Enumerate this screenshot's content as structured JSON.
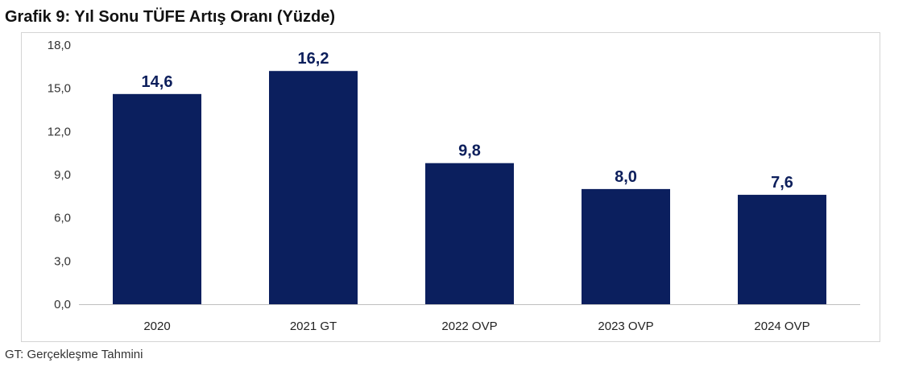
{
  "title": "Grafik 9: Yıl Sonu TÜFE Artış Oranı (Yüzde)",
  "footnote": "GT: Gerçekleşme Tahmini",
  "colors": {
    "bar": "#0b1f5e",
    "label": "#0d1f5c",
    "axis": "#bfbfbf"
  },
  "chart_data": {
    "type": "bar",
    "title": "Grafik 9: Yıl Sonu TÜFE Artış Oranı (Yüzde)",
    "categories": [
      "2020",
      "2021 GT",
      "2022 OVP",
      "2023 OVP",
      "2024 OVP"
    ],
    "values": [
      14.6,
      16.2,
      9.8,
      8.0,
      7.6
    ],
    "value_labels": [
      "14,6",
      "16,2",
      "9,8",
      "8,0",
      "7,6"
    ],
    "yticks": [
      "0,0",
      "3,0",
      "6,0",
      "9,0",
      "12,0",
      "15,0",
      "18,0"
    ],
    "ylim": [
      0,
      18
    ],
    "xlabel": "",
    "ylabel": "",
    "grid": false,
    "legend": "none"
  }
}
